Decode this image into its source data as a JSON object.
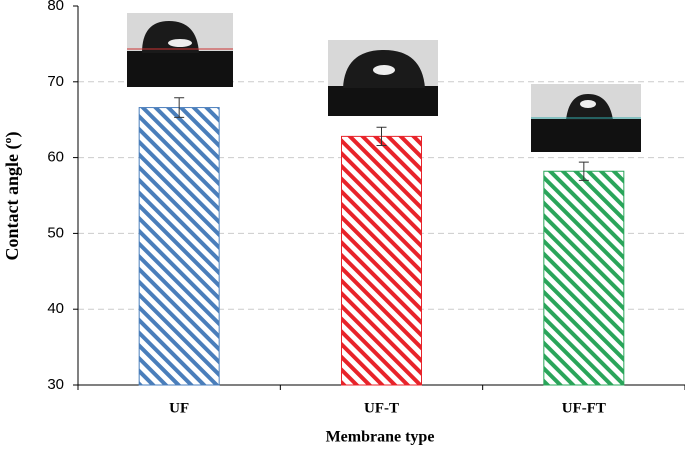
{
  "chart_data": {
    "type": "bar",
    "xlabel": "Membrane type",
    "ylabel": "Contact angle (º)",
    "categories": [
      "UF",
      "UF-T",
      "UF-FT"
    ],
    "values": [
      66.6,
      62.8,
      58.2
    ],
    "errors": [
      1.3,
      1.2,
      1.2
    ],
    "colors": [
      "#4a7ebb",
      "#e8232a",
      "#2aa55a"
    ],
    "ylim": [
      30,
      80
    ],
    "yticks": [
      30,
      40,
      50,
      60,
      70,
      80
    ],
    "grid": true
  }
}
